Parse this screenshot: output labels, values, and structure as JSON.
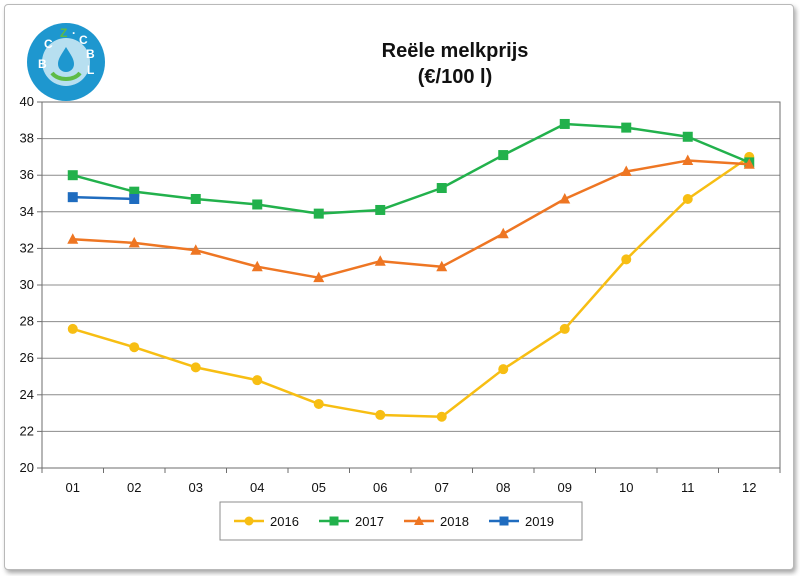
{
  "logo": {
    "text": [
      "B",
      "C",
      "Z",
      "·",
      "C",
      "B",
      "L"
    ],
    "icon": "drop-hands-logo",
    "colors": {
      "ring": "#1e97cf",
      "inner": "#b7dff0",
      "accent": "#5dbb46"
    }
  },
  "chart_data": {
    "type": "line",
    "title": "Reële melkprijs",
    "subtitle": "(€/100 l)",
    "categories": [
      "01",
      "02",
      "03",
      "04",
      "05",
      "06",
      "07",
      "08",
      "09",
      "10",
      "11",
      "12"
    ],
    "ylim": [
      20,
      40
    ],
    "yticks": [
      20,
      22,
      24,
      26,
      28,
      30,
      32,
      34,
      36,
      38,
      40
    ],
    "grid": true,
    "legend_position": "bottom",
    "series": [
      {
        "name": "2016",
        "color": "#f7be13",
        "marker": "circle",
        "values": [
          27.6,
          26.6,
          25.5,
          24.8,
          23.5,
          22.9,
          22.8,
          25.4,
          27.6,
          31.4,
          34.7,
          37.0
        ]
      },
      {
        "name": "2017",
        "color": "#22b14c",
        "marker": "square",
        "values": [
          36.0,
          35.1,
          34.7,
          34.4,
          33.9,
          34.1,
          35.3,
          37.1,
          38.8,
          38.6,
          38.1,
          36.7
        ]
      },
      {
        "name": "2018",
        "color": "#ee7623",
        "marker": "triangle",
        "values": [
          32.5,
          32.3,
          31.9,
          31.0,
          30.4,
          31.3,
          31.0,
          32.8,
          34.7,
          36.2,
          36.8,
          36.6
        ]
      },
      {
        "name": "2019",
        "color": "#1f6cbf",
        "marker": "square",
        "values": [
          34.8,
          34.7,
          null,
          null,
          null,
          null,
          null,
          null,
          null,
          null,
          null,
          null
        ]
      }
    ]
  }
}
